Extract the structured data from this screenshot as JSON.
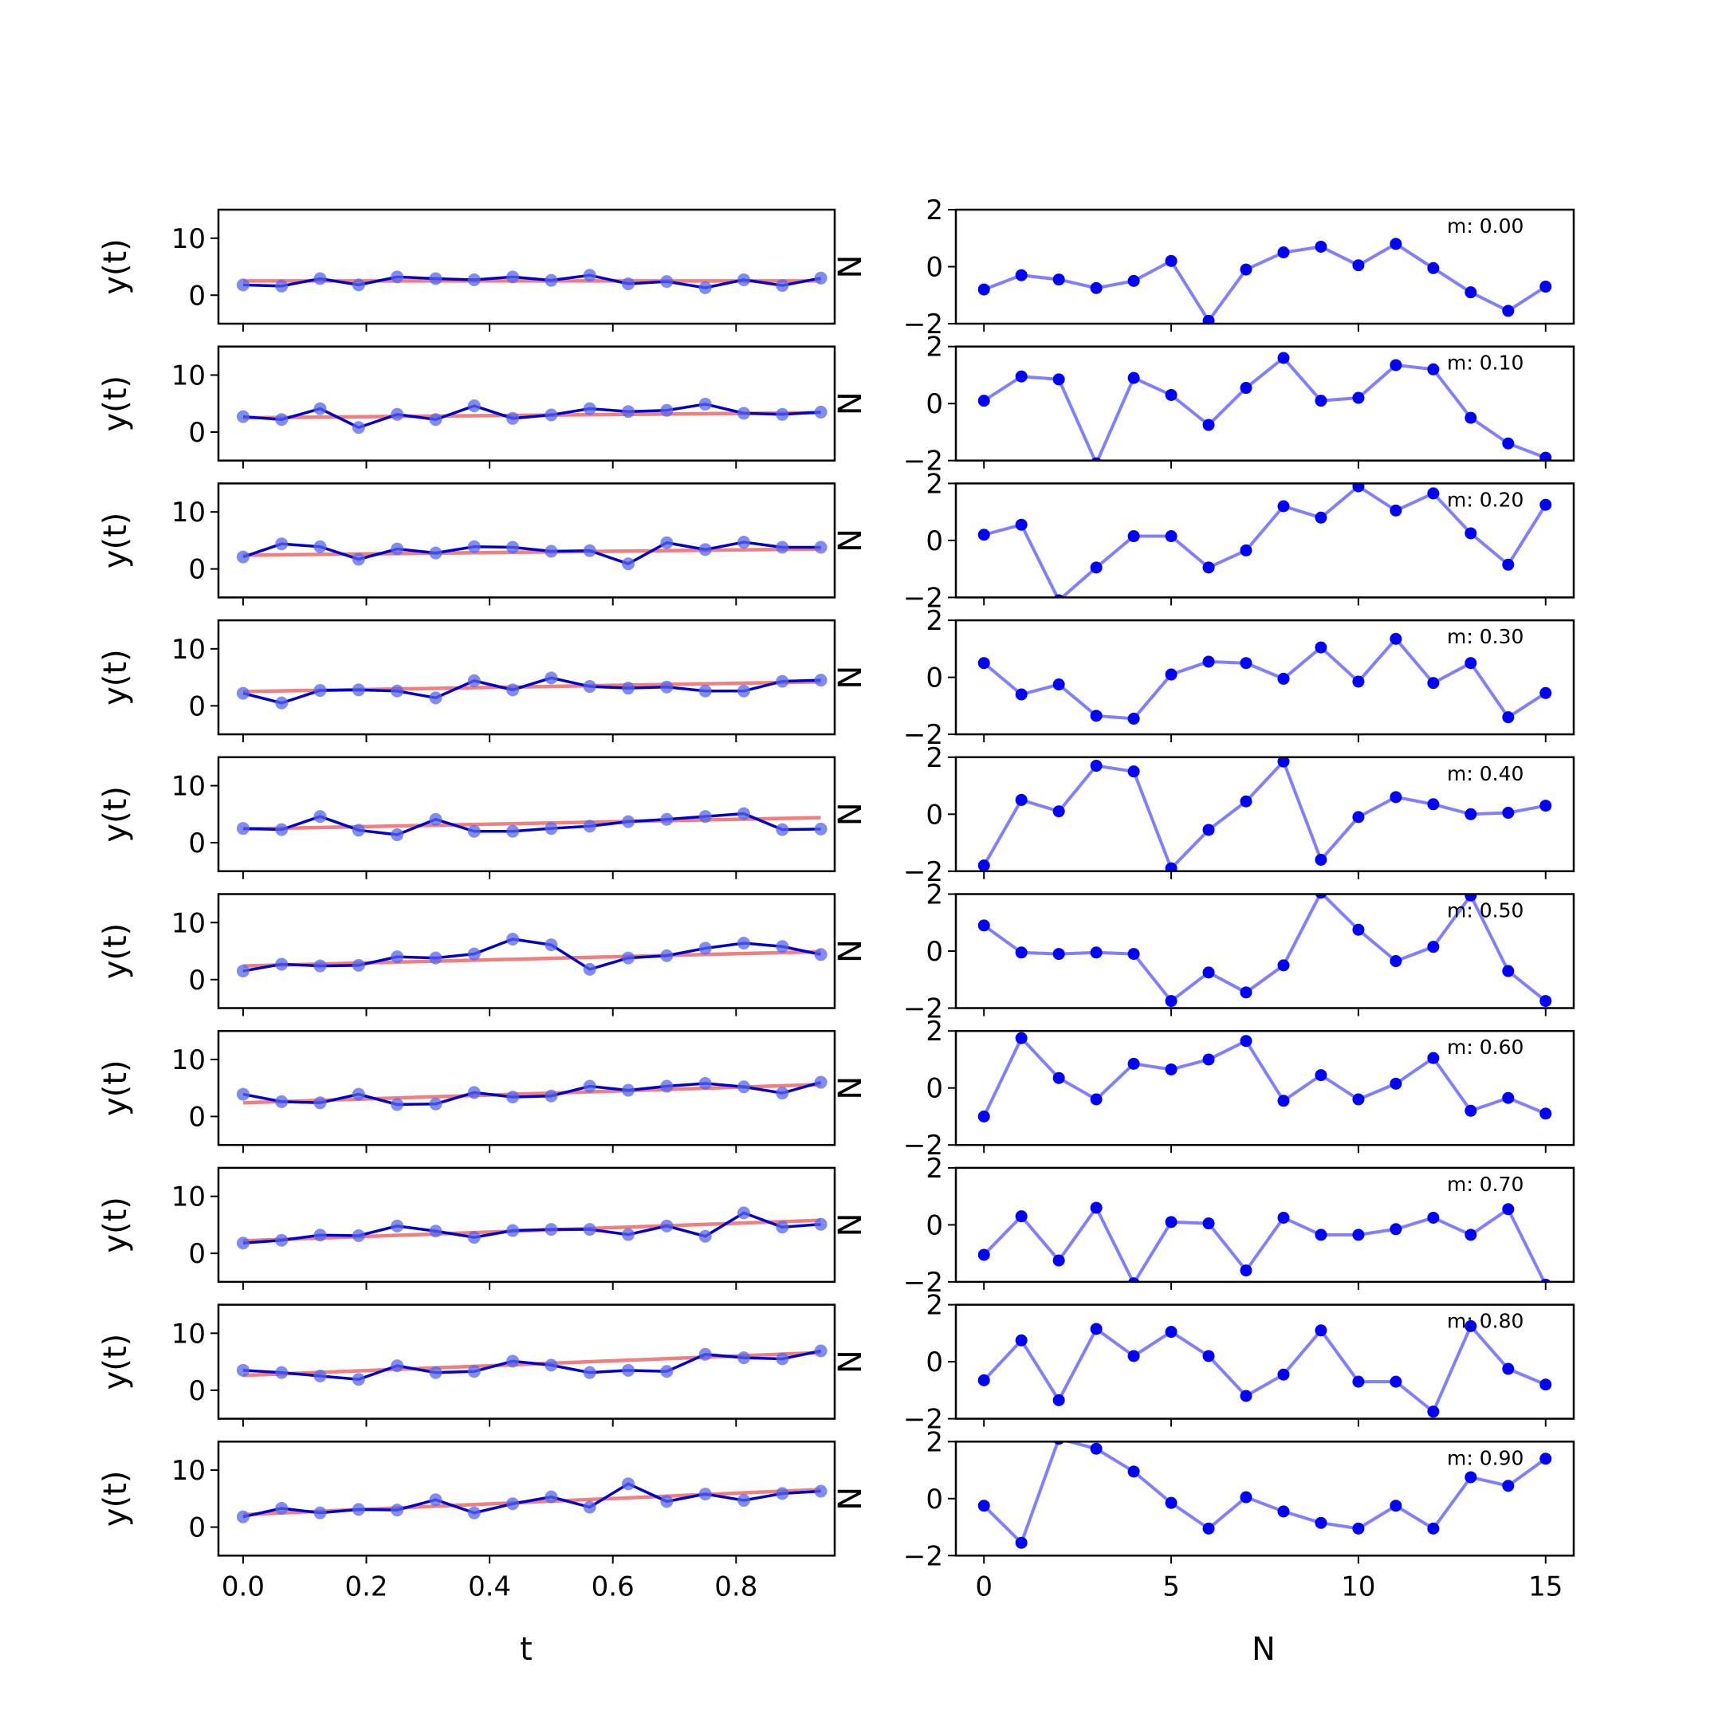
{
  "chart_data": {
    "type": "line",
    "left_column": {
      "xlabel": "t",
      "ylabel": "y(t)",
      "xlim": [
        -0.04,
        0.96
      ],
      "ylim": [
        -5,
        15
      ],
      "yticks": [
        0,
        10
      ],
      "xticks": [
        0.0,
        0.2,
        0.4,
        0.6,
        0.8
      ],
      "xtick_labels": [
        "0.0",
        "0.2",
        "0.4",
        "0.6",
        "0.8"
      ],
      "ytick_labels": [
        "0",
        "10"
      ],
      "x": [
        0,
        0.0625,
        0.125,
        0.1875,
        0.25,
        0.3125,
        0.375,
        0.4375,
        0.5,
        0.5625,
        0.625,
        0.6875,
        0.75,
        0.8125,
        0.875,
        0.9375
      ],
      "clipped_right_label": "N",
      "series_colors": {
        "data": "#0000cc",
        "trend": "#f08080"
      }
    },
    "right_column": {
      "xlabel": "N",
      "xlim": [
        -0.75,
        15.75
      ],
      "ylim": [
        -2,
        2
      ],
      "yticks": [
        -2,
        0,
        2
      ],
      "xticks": [
        0,
        5,
        10,
        15
      ],
      "xtick_labels": [
        "0",
        "5",
        "10",
        "15"
      ],
      "ytick_labels": [
        "−2",
        "0",
        "2"
      ],
      "x": [
        0,
        1,
        2,
        3,
        4,
        5,
        6,
        7,
        8,
        9,
        10,
        11,
        12,
        13,
        14,
        15
      ],
      "series_color": "#0000ff"
    },
    "rows": [
      {
        "annotation": "m: 0.00",
        "trend": [
          2.5,
          2.5
        ],
        "y": [
          1.8,
          1.6,
          2.9,
          1.8,
          3.2,
          2.9,
          2.7,
          3.2,
          2.6,
          3.5,
          2.0,
          2.4,
          1.3,
          2.7,
          1.7,
          3.0
        ],
        "noise": [
          -0.8,
          -0.3,
          -0.45,
          -0.75,
          -0.5,
          0.2,
          -1.9,
          -0.1,
          0.5,
          0.7,
          0.05,
          0.8,
          -0.05,
          -0.9,
          -1.55,
          -0.7
        ]
      },
      {
        "annotation": "m: 0.10",
        "trend": [
          2.5,
          3.4
        ],
        "y": [
          2.7,
          2.2,
          4.1,
          0.8,
          3.1,
          2.2,
          4.6,
          2.4,
          3.0,
          4.1,
          3.6,
          3.8,
          4.9,
          3.3,
          3.1,
          3.5
        ],
        "noise": [
          0.1,
          0.95,
          0.85,
          -2.1,
          0.9,
          0.3,
          -0.75,
          0.55,
          1.6,
          0.1,
          0.2,
          1.35,
          1.2,
          -0.5,
          -1.4,
          -1.9
        ]
      },
      {
        "annotation": "m: 0.20",
        "trend": [
          2.4,
          3.5
        ],
        "y": [
          2.1,
          4.4,
          3.9,
          1.7,
          3.5,
          2.8,
          3.9,
          3.8,
          3.1,
          3.2,
          0.9,
          4.6,
          3.4,
          4.7,
          3.8,
          3.8
        ],
        "noise": [
          0.2,
          0.55,
          -2.1,
          -0.95,
          0.15,
          0.15,
          -0.95,
          -0.35,
          1.2,
          0.8,
          1.9,
          1.05,
          1.65,
          0.25,
          -0.85,
          1.25
        ]
      },
      {
        "annotation": "m: 0.30",
        "trend": [
          2.5,
          4.2
        ],
        "y": [
          2.2,
          0.5,
          2.7,
          2.8,
          2.6,
          1.4,
          4.4,
          2.8,
          4.9,
          3.4,
          3.1,
          3.3,
          2.6,
          2.6,
          4.3,
          4.5
        ],
        "noise": [
          0.5,
          -0.6,
          -0.25,
          -1.35,
          -1.45,
          0.1,
          0.55,
          0.5,
          -0.05,
          1.05,
          -0.15,
          1.35,
          -0.2,
          0.5,
          -1.4,
          -0.55
        ]
      },
      {
        "annotation": "m: 0.40",
        "trend": [
          2.4,
          4.4
        ],
        "y": [
          2.5,
          2.3,
          4.6,
          2.2,
          1.4,
          4.1,
          2.0,
          2.0,
          2.5,
          2.9,
          3.7,
          4.1,
          4.6,
          5.1,
          2.3,
          2.4
        ],
        "noise": [
          -1.8,
          0.5,
          0.1,
          1.7,
          1.5,
          -1.9,
          -0.55,
          0.45,
          1.85,
          -1.6,
          -0.1,
          0.6,
          0.35,
          0.0,
          0.05,
          0.3
        ]
      },
      {
        "annotation": "m: 0.50",
        "trend": [
          2.4,
          4.9
        ],
        "y": [
          1.5,
          2.7,
          2.4,
          2.5,
          4.0,
          3.8,
          4.5,
          7.1,
          6.1,
          1.8,
          3.8,
          4.2,
          5.5,
          6.4,
          5.8,
          4.4
        ],
        "noise": [
          0.9,
          -0.05,
          -0.1,
          -0.05,
          -0.1,
          -1.75,
          -0.75,
          -1.45,
          -0.5,
          2.05,
          0.75,
          -0.35,
          0.15,
          1.95,
          -0.7,
          -1.75
        ]
      },
      {
        "annotation": "m: 0.60",
        "trend": [
          2.4,
          5.6
        ],
        "y": [
          3.9,
          2.6,
          2.4,
          3.9,
          2.1,
          2.2,
          4.2,
          3.4,
          3.6,
          5.3,
          4.6,
          5.3,
          5.8,
          5.2,
          4.1,
          6.0
        ],
        "noise": [
          -1.0,
          1.75,
          0.35,
          -0.4,
          0.85,
          0.65,
          1.0,
          1.65,
          -0.45,
          0.45,
          -0.4,
          0.15,
          1.05,
          -0.8,
          -0.35,
          -0.9
        ]
      },
      {
        "annotation": "m: 0.70",
        "trend": [
          2.2,
          5.8
        ],
        "y": [
          1.8,
          2.3,
          3.2,
          3.1,
          4.8,
          3.9,
          2.8,
          4.0,
          4.2,
          4.2,
          3.3,
          4.8,
          3.0,
          7.1,
          4.6,
          5.1
        ],
        "noise": [
          -1.05,
          0.3,
          -1.25,
          0.6,
          -2.05,
          0.1,
          0.05,
          -1.6,
          0.25,
          -0.35,
          -0.35,
          -0.15,
          0.25,
          -0.35,
          0.55,
          -2.1
        ]
      },
      {
        "annotation": "m: 0.80",
        "trend": [
          2.6,
          6.6
        ],
        "y": [
          3.5,
          3.1,
          2.5,
          1.9,
          4.3,
          3.1,
          3.3,
          5.1,
          4.4,
          3.1,
          3.5,
          3.3,
          6.3,
          5.7,
          5.5,
          6.9
        ],
        "noise": [
          -0.65,
          0.75,
          -1.35,
          1.15,
          0.2,
          1.05,
          0.2,
          -1.2,
          -0.45,
          1.1,
          -0.7,
          -0.7,
          -1.75,
          1.25,
          -0.25,
          -0.8
        ]
      },
      {
        "annotation": "m: 0.90",
        "trend": [
          2.2,
          6.6
        ],
        "y": [
          1.8,
          3.3,
          2.5,
          3.1,
          3.0,
          4.8,
          2.5,
          4.1,
          5.3,
          3.5,
          7.6,
          4.5,
          5.8,
          4.7,
          5.9,
          6.3
        ],
        "noise": [
          -0.25,
          -1.55,
          2.1,
          1.75,
          0.95,
          -0.15,
          -1.05,
          0.05,
          -0.45,
          -0.85,
          -1.05,
          -0.25,
          -1.05,
          0.75,
          0.45,
          1.4
        ]
      }
    ]
  }
}
